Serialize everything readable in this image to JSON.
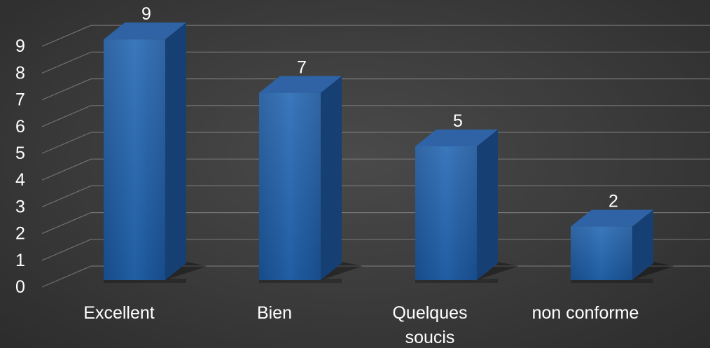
{
  "chart_data": {
    "type": "bar",
    "categories": [
      "Excellent",
      "Bien",
      "Quelques soucis",
      "non conforme"
    ],
    "values": [
      9,
      7,
      5,
      2
    ],
    "data_labels": [
      "9",
      "7",
      "5",
      "2"
    ],
    "y_ticks": [
      "0",
      "1",
      "2",
      "3",
      "4",
      "5",
      "6",
      "7",
      "8",
      "9"
    ],
    "ylim": [
      0,
      9
    ],
    "grid": true,
    "legend": "none",
    "style": "3d-column",
    "colors": {
      "bar_front": "#1f5fa8",
      "bar_side": "#163f73",
      "bar_top": "#2f63a5",
      "gridline": "#8a8a8a",
      "text": "#ffffff"
    }
  }
}
